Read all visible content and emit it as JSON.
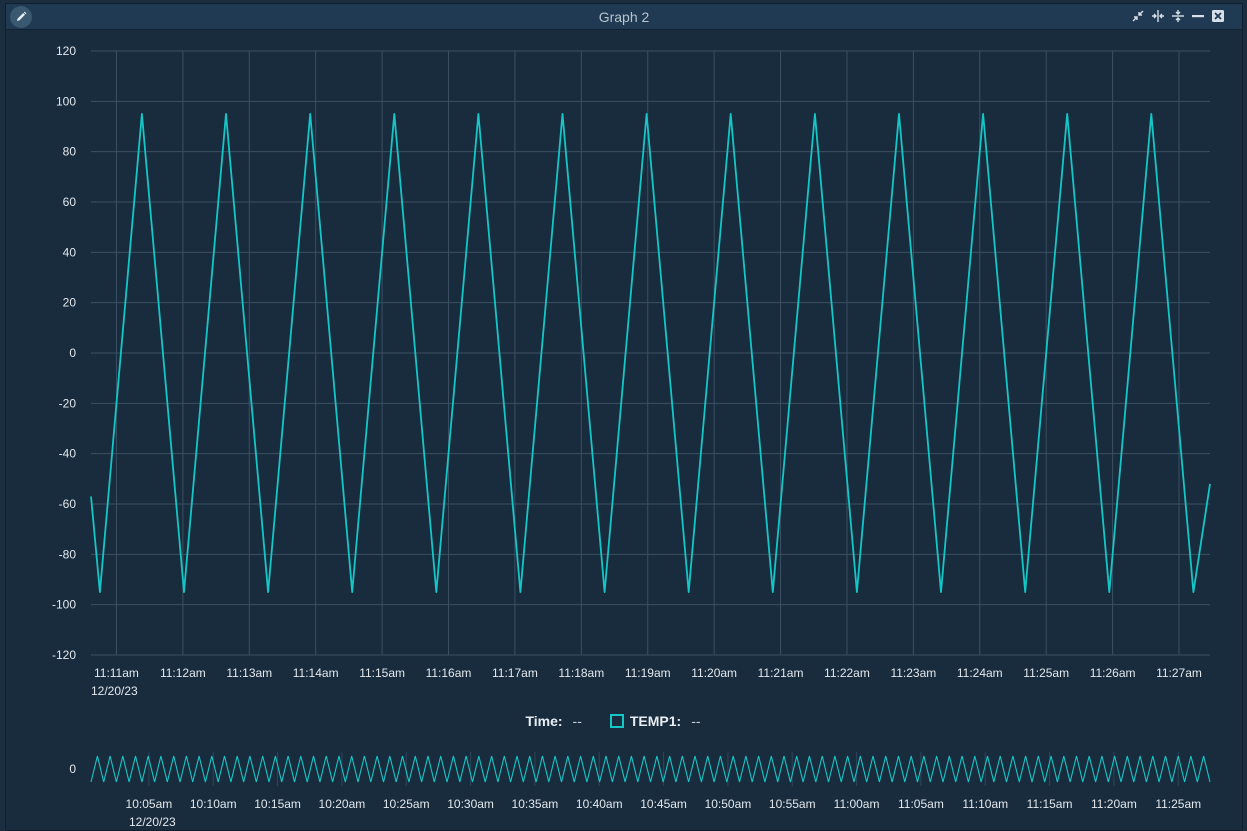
{
  "window": {
    "title": "Graph 2",
    "icons": {
      "edit": "pencil-icon",
      "collapse": "collapse-arrows-icon",
      "split_h": "split-horizontal-icon",
      "split_v": "split-vertical-icon",
      "minimize": "minimize-icon",
      "close": "close-icon"
    }
  },
  "legend": {
    "time_label": "Time:",
    "time_value": "--",
    "series_label": "TEMP1:",
    "series_value": "--",
    "series_color": "#15c6c6"
  },
  "chart_data": [
    {
      "type": "line",
      "role": "main",
      "ylim": [
        -120,
        120
      ],
      "yticks": [
        120,
        100,
        80,
        60,
        40,
        20,
        0,
        -20,
        -40,
        -60,
        -80,
        -100,
        -120
      ],
      "xticks": [
        "11:11am",
        "11:12am",
        "11:13am",
        "11:14am",
        "11:15am",
        "11:16am",
        "11:17am",
        "11:18am",
        "11:19am",
        "11:20am",
        "11:21am",
        "11:22am",
        "11:23am",
        "11:24am",
        "11:25am",
        "11:26am",
        "11:27am"
      ],
      "date_label": "12/20/23",
      "grid": true,
      "series": [
        {
          "name": "TEMP1",
          "color": "#15c6c6",
          "x": [
            "11:10:37",
            "11:10:45",
            "11:11:23",
            "11:12:01",
            "11:12:39",
            "11:13:17",
            "11:13:55",
            "11:14:33",
            "11:15:11",
            "11:15:49",
            "11:16:27",
            "11:17:05",
            "11:17:43",
            "11:18:21",
            "11:18:59",
            "11:19:37",
            "11:20:15",
            "11:20:53",
            "11:21:31",
            "11:22:09",
            "11:22:47",
            "11:23:25",
            "11:24:03",
            "11:24:41",
            "11:25:19",
            "11:25:57",
            "11:26:35",
            "11:27:13",
            "11:27:28"
          ],
          "y": [
            -57,
            -95,
            95,
            -95,
            95,
            -95,
            95,
            -95,
            95,
            -95,
            95,
            -95,
            95,
            -95,
            95,
            -95,
            95,
            -95,
            95,
            -95,
            95,
            -95,
            95,
            -95,
            95,
            -95,
            95,
            -95,
            -52
          ]
        }
      ]
    },
    {
      "type": "line",
      "role": "overview",
      "yticks": [
        0
      ],
      "xticks": [
        "10:05am",
        "10:10am",
        "10:15am",
        "10:20am",
        "10:25am",
        "10:30am",
        "10:35am",
        "10:40am",
        "10:45am",
        "10:50am",
        "10:55am",
        "11:00am",
        "11:05am",
        "11:10am",
        "11:15am",
        "11:20am",
        "11:25am"
      ],
      "date_label": "12/20/23",
      "series": [
        {
          "name": "TEMP1",
          "color": "#15c6c6",
          "cycles": 88
        }
      ]
    }
  ]
}
